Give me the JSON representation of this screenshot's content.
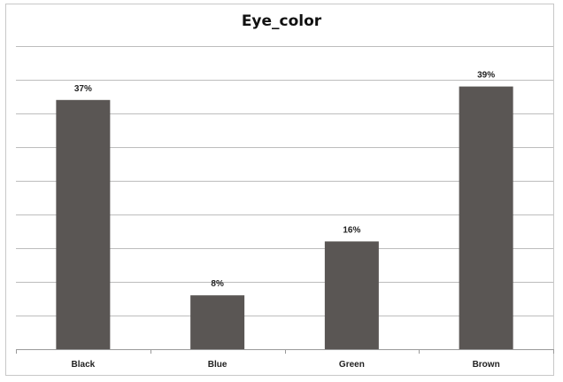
{
  "chart_data": {
    "type": "bar",
    "title": "Eye_color",
    "categories": [
      "Black",
      "Blue",
      "Green",
      "Brown"
    ],
    "values": [
      37,
      8,
      16,
      39
    ],
    "data_labels": [
      "37%",
      "8%",
      "16%",
      "39%"
    ],
    "unit": "%",
    "ylim": [
      0,
      45
    ],
    "grid": true,
    "legend": "none",
    "bar_color": "#5a5654"
  }
}
